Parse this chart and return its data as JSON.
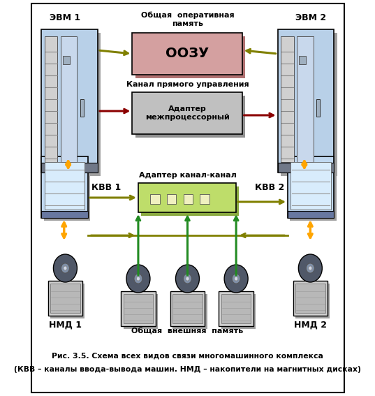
{
  "title": "Рис. 3.5. Схема всех видов связи многомашинного комплекса",
  "subtitle": "(КВВ – каналы ввода-вывода машин. НМД – накопители на магнитных дисках)",
  "label_evm1": "ЭВМ 1",
  "label_evm2": "ЭВМ 2",
  "label_kvv1": "КВВ 1",
  "label_kvv2": "КВВ 2",
  "label_nmd1": "НМД 1",
  "label_nmd2": "НМД 2",
  "label_oozu": "ООЗУ",
  "label_adapter_inter": "Адаптер\nмежпроцессорный",
  "label_adapter_channel": "Адаптер канал-канал",
  "label_shared_ram": "Общая  оперативная\nпамять",
  "label_direct_channel": "Канал прямого управления",
  "label_shared_ext": "Общая  внешняя  память",
  "bg_color": "#ffffff",
  "border_color": "#000000",
  "olive": "#808000",
  "orange": "#FFA500",
  "darkred": "#8B0000",
  "green": "#228B22",
  "oozu_fill": "#D4A0A0",
  "oozu_shadow": "#B07070",
  "adapter_inter_fill": "#C0C0C0",
  "adapter_inter_shadow": "#909090",
  "adapter_channel_fill": "#BEDD6A",
  "adapter_channel_shadow": "#8AAA40",
  "evm_body": "#B8D0E8",
  "evm_shadow": "#909090",
  "kvv_body": "#C0D8F0",
  "kvv_shadow": "#909090",
  "nmd_base": "#C8C8C8",
  "nmd_disk": "#505868"
}
